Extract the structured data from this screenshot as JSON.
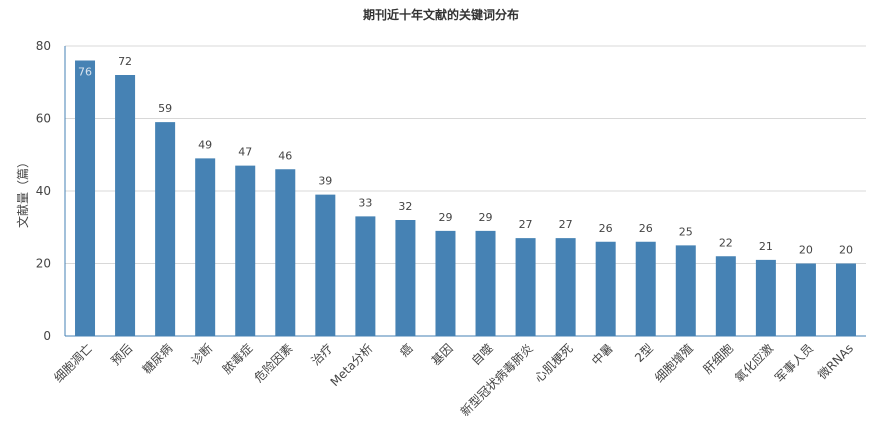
{
  "chart_data": {
    "type": "bar",
    "title": "期刊近十年文献的关键词分布",
    "xlabel": "",
    "ylabel": "文献量（篇）",
    "ylim": [
      0,
      80
    ],
    "yticks": [
      0,
      20,
      40,
      60,
      80
    ],
    "grid": true,
    "legend": "none",
    "bar_color": "#4682b4",
    "categories": [
      "细胞凋亡",
      "预后",
      "糖尿病",
      "诊断",
      "脓毒症",
      "危险因素",
      "治疗",
      "Meta分析",
      "癌",
      "基因",
      "自噬",
      "新型冠状病毒肺炎",
      "心肌梗死",
      "中暑",
      "2型",
      "细胞增殖",
      "肝细胞",
      "氧化应激",
      "军事人员",
      "微RNAs"
    ],
    "values": [
      76,
      72,
      59,
      49,
      47,
      46,
      39,
      33,
      32,
      29,
      29,
      27,
      27,
      26,
      26,
      25,
      22,
      21,
      20,
      20
    ]
  }
}
